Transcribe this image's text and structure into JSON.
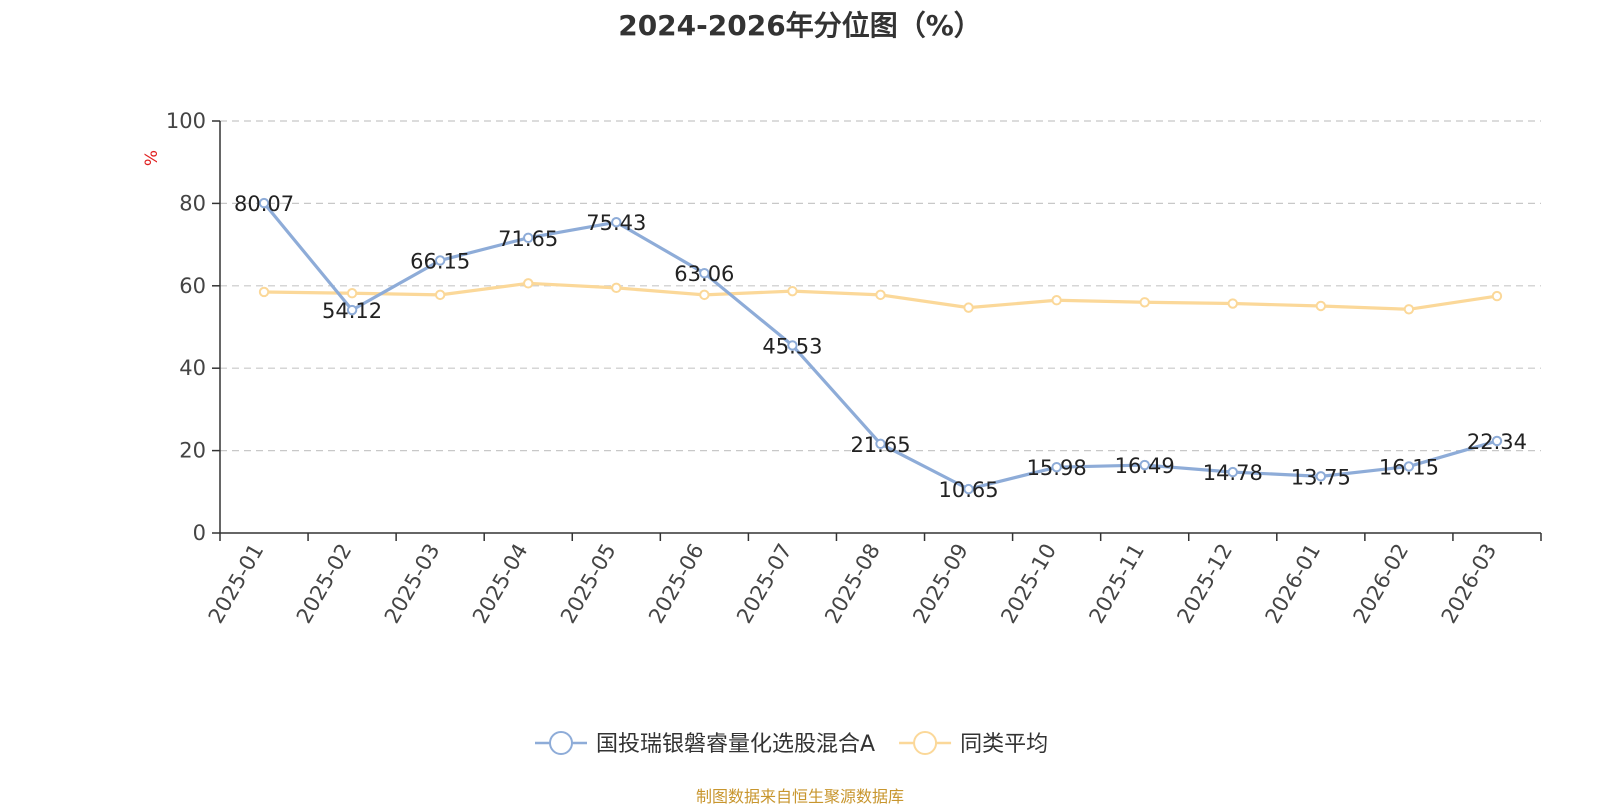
{
  "title": "2024-2026年分位图（%）",
  "source": "制图数据来自恒生聚源数据库",
  "colors": {
    "fund": "#8eacd8",
    "avg": "#fbd899",
    "unit_label": "#e02020",
    "source": "#c8962e"
  },
  "chart_data": {
    "type": "line",
    "title": "2024-2026年分位图（%）",
    "ylabel": "%",
    "ylim": [
      0,
      100
    ],
    "yticks": [
      0,
      20,
      40,
      60,
      80,
      100
    ],
    "grid": true,
    "legend_position": "bottom",
    "categories": [
      "2025-01",
      "2025-02",
      "2025-03",
      "2025-04",
      "2025-05",
      "2025-06",
      "2025-07",
      "2025-08",
      "2025-09",
      "2025-10",
      "2025-11",
      "2025-12",
      "2026-01",
      "2026-02",
      "2026-03"
    ],
    "series": [
      {
        "name": "国投瑞银磐睿量化选股混合A",
        "color": "#8eacd8",
        "values": [
          80.07,
          54.12,
          66.15,
          71.65,
          75.43,
          63.06,
          45.53,
          21.65,
          10.65,
          15.98,
          16.49,
          14.78,
          13.75,
          16.15,
          22.34
        ],
        "labels": [
          "80.07",
          "54.12",
          "66.15",
          "71.65",
          "75.43",
          "63.06",
          "45.53",
          "21.65",
          "10.65",
          "15.98",
          "16.49",
          "14.78",
          "13.75",
          "16.15",
          "22.34"
        ]
      },
      {
        "name": "同类平均",
        "color": "#fbd899",
        "values": [
          58.5,
          58.2,
          57.8,
          60.6,
          59.5,
          57.8,
          58.7,
          57.8,
          54.7,
          56.5,
          56.0,
          55.7,
          55.1,
          54.3,
          57.5
        ]
      }
    ]
  }
}
